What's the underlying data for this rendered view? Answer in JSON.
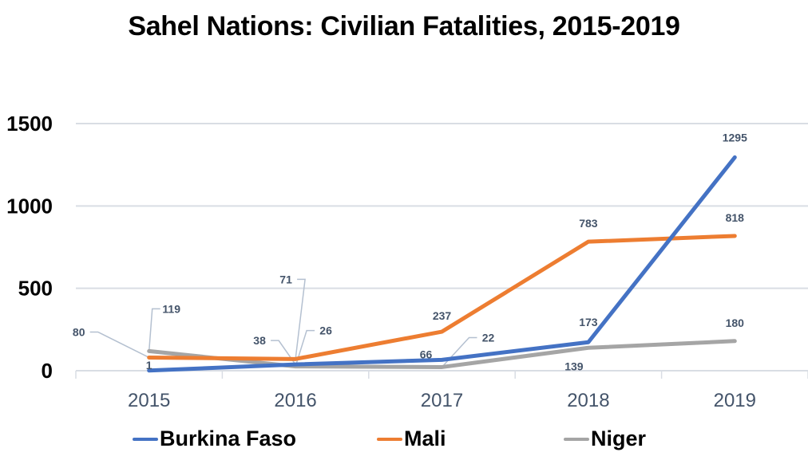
{
  "chart_data": {
    "type": "line",
    "title": "Sahel Nations: Civilian Fatalities, 2015-2019",
    "xlabel": "",
    "ylabel": "",
    "categories": [
      "2015",
      "2016",
      "2017",
      "2018",
      "2019"
    ],
    "ylim": [
      0,
      1500
    ],
    "yticks": [
      0,
      500,
      1000,
      1500
    ],
    "grid": true,
    "legend_position": "bottom",
    "series": [
      {
        "name": "Burkina Faso",
        "color": "#4472c4",
        "values": [
          1,
          38,
          66,
          173,
          1295
        ]
      },
      {
        "name": "Mali",
        "color": "#ed7d31",
        "values": [
          80,
          71,
          237,
          783,
          818
        ]
      },
      {
        "name": "Niger",
        "color": "#a5a5a5",
        "values": [
          119,
          26,
          22,
          139,
          180
        ]
      }
    ]
  }
}
